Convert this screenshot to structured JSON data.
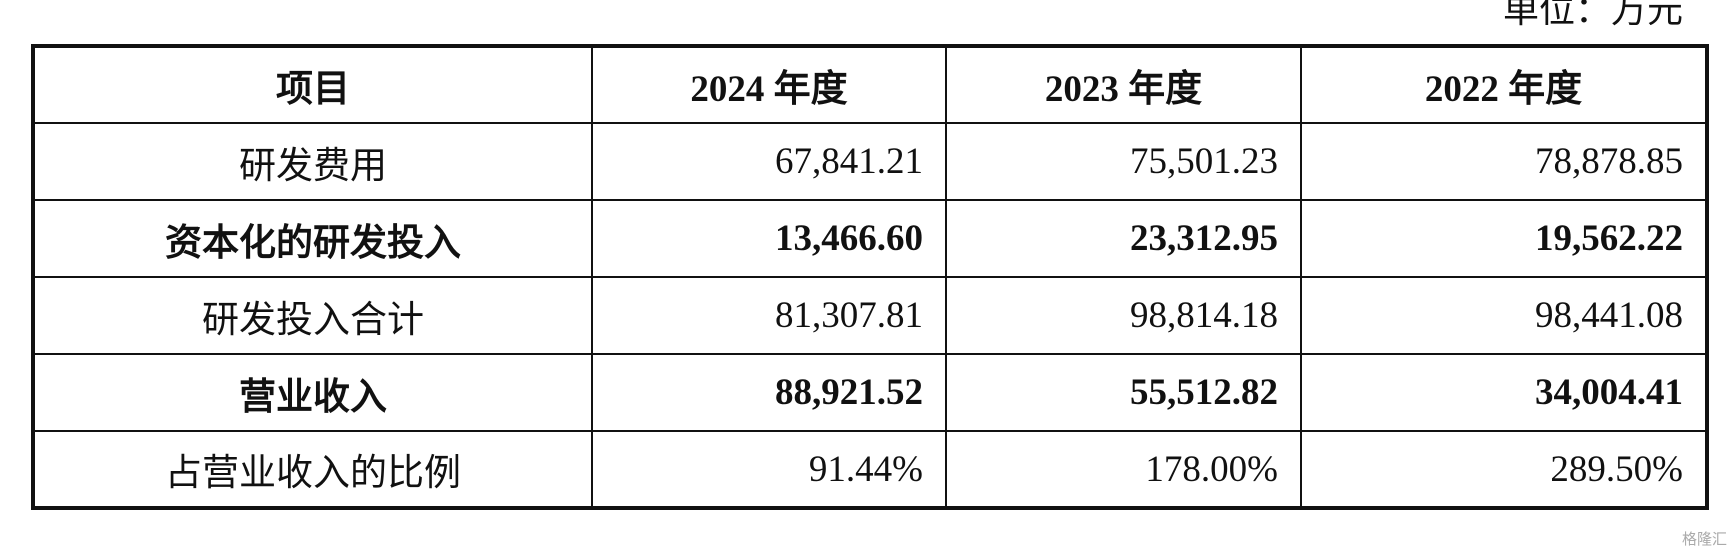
{
  "header": {
    "unit": "单位：万元"
  },
  "table": {
    "columns": [
      "项目",
      "2024 年度",
      "2023 年度",
      "2022 年度"
    ],
    "rows": [
      [
        "研发费用",
        "67,841.21",
        "75,501.23",
        "78,878.85"
      ],
      [
        "资本化的研发投入",
        "13,466.60",
        "23,312.95",
        "19,562.22"
      ],
      [
        "研发投入合计",
        "81,307.81",
        "98,814.18",
        "98,441.08"
      ],
      [
        "营业收入",
        "88,921.52",
        "55,512.82",
        "34,004.41"
      ],
      [
        "占营业收入的比例",
        "91.44%",
        "178.00%",
        "289.50%"
      ]
    ]
  },
  "watermark": "格隆汇"
}
